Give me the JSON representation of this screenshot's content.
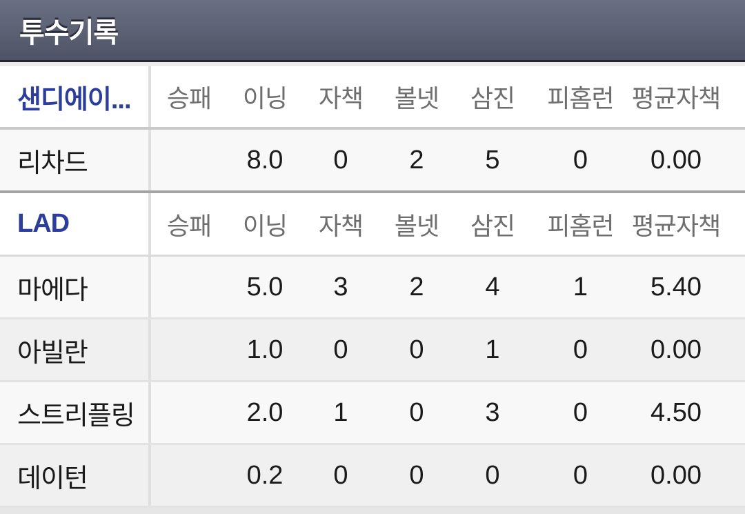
{
  "title_bar": {
    "title": "투수기록"
  },
  "table": {
    "column_headers": [
      "승패",
      "이닝",
      "자책",
      "볼넷",
      "삼진",
      "피홈런",
      "평균자책"
    ],
    "sections": [
      {
        "team": "샌디에이...",
        "rows": [
          {
            "name": "리차드",
            "values": [
              "",
              "8.0",
              "0",
              "2",
              "5",
              "0",
              "0.00"
            ]
          }
        ]
      },
      {
        "team": "LAD",
        "rows": [
          {
            "name": "마에다",
            "values": [
              "",
              "5.0",
              "3",
              "2",
              "4",
              "1",
              "5.40"
            ]
          },
          {
            "name": "아빌란",
            "values": [
              "",
              "1.0",
              "0",
              "0",
              "1",
              "0",
              "0.00"
            ]
          },
          {
            "name": "스트리플링",
            "values": [
              "",
              "2.0",
              "1",
              "0",
              "3",
              "0",
              "4.50"
            ]
          },
          {
            "name": "데이턴",
            "values": [
              "",
              "0.2",
              "0",
              "0",
              "0",
              "0",
              "0.00"
            ]
          }
        ]
      }
    ]
  },
  "colors": {
    "title_bar_top": "#6a7083",
    "title_bar_bottom": "#4d5364",
    "title_text": "#ffffff",
    "team_link_blue": "#2b3da0",
    "column_header_gray": "#6e6e6e",
    "value_text": "#1a1a1a",
    "row_light": "#f8f8f8",
    "row_dark": "#f0f0f0",
    "section_divider": "#a3a3a3"
  }
}
